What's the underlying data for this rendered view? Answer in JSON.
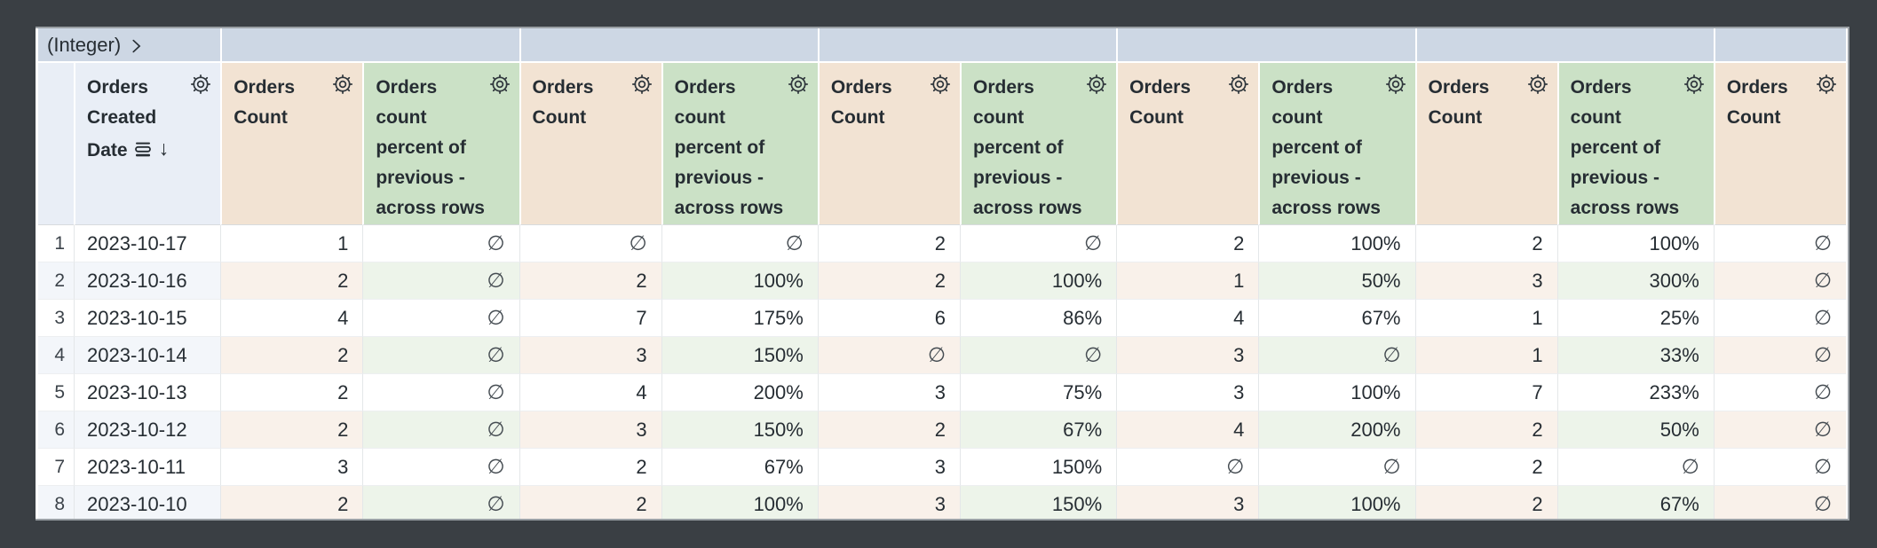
{
  "pivot_bar": {
    "field_label": "(Integer)",
    "cells": [
      {
        "label": "(Integer)",
        "has_chevron": true,
        "span": 2
      },
      {
        "label": "",
        "span": 2
      },
      {
        "label": "",
        "span": 2
      },
      {
        "label": "",
        "span": 2
      },
      {
        "label": "",
        "span": 2
      },
      {
        "label": "",
        "span": 2
      },
      {
        "label": "",
        "span": 1
      }
    ]
  },
  "icons": {
    "chevron_right": "❯",
    "sort_desc": "↓",
    "gear": "⚙",
    "null_symbol": "∅"
  },
  "columns": [
    {
      "label": "",
      "kind": "index",
      "gear": false
    },
    {
      "label": "Orders Created Date",
      "kind": "dimension",
      "gear": true,
      "sort_desc": true,
      "subtotal_icon": true
    },
    {
      "label": "Orders Count",
      "kind": "measure",
      "gear": true
    },
    {
      "label": "Orders count percent of previous - across rows",
      "kind": "table_calculation",
      "gear": true
    },
    {
      "label": "Orders Count",
      "kind": "measure",
      "gear": true
    },
    {
      "label": "Orders count percent of previous - across rows",
      "kind": "table_calculation",
      "gear": true
    },
    {
      "label": "Orders Count",
      "kind": "measure",
      "gear": true
    },
    {
      "label": "Orders count percent of previous - across rows",
      "kind": "table_calculation",
      "gear": true
    },
    {
      "label": "Orders Count",
      "kind": "measure",
      "gear": true
    },
    {
      "label": "Orders count percent of previous - across rows",
      "kind": "table_calculation",
      "gear": true
    },
    {
      "label": "Orders Count",
      "kind": "measure",
      "gear": true
    },
    {
      "label": "Orders count percent of previous - across rows",
      "kind": "table_calculation",
      "gear": true
    },
    {
      "label": "Orders Count",
      "kind": "measure",
      "gear": true,
      "clipped": true
    }
  ],
  "rows": [
    {
      "cells": [
        "1",
        "2023-10-17",
        "1",
        "∅",
        "∅",
        "∅",
        "2",
        "∅",
        "2",
        "100%",
        "2",
        "100%",
        "∅"
      ]
    },
    {
      "cells": [
        "2",
        "2023-10-16",
        "2",
        "∅",
        "2",
        "100%",
        "2",
        "100%",
        "1",
        "50%",
        "3",
        "300%",
        "∅"
      ]
    },
    {
      "cells": [
        "3",
        "2023-10-15",
        "4",
        "∅",
        "7",
        "175%",
        "6",
        "86%",
        "4",
        "67%",
        "1",
        "25%",
        "∅"
      ]
    },
    {
      "cells": [
        "4",
        "2023-10-14",
        "2",
        "∅",
        "3",
        "150%",
        "∅",
        "∅",
        "3",
        "∅",
        "1",
        "33%",
        "∅"
      ]
    },
    {
      "cells": [
        "5",
        "2023-10-13",
        "2",
        "∅",
        "4",
        "200%",
        "3",
        "75%",
        "3",
        "100%",
        "7",
        "233%",
        "∅"
      ]
    },
    {
      "cells": [
        "6",
        "2023-10-12",
        "2",
        "∅",
        "3",
        "150%",
        "2",
        "67%",
        "4",
        "200%",
        "2",
        "50%",
        "∅"
      ]
    },
    {
      "cells": [
        "7",
        "2023-10-11",
        "3",
        "∅",
        "2",
        "67%",
        "3",
        "150%",
        "∅",
        "∅",
        "2",
        "∅",
        "∅"
      ]
    },
    {
      "cells": [
        "8",
        "2023-10-10",
        "2",
        "∅",
        "2",
        "100%",
        "3",
        "150%",
        "3",
        "100%",
        "2",
        "67%",
        "∅"
      ]
    }
  ],
  "colors": {
    "frame_background": "#3a3f44",
    "pivot_bar": "#cdd7e4",
    "dimension_header": "#e9eef6",
    "measure_header": "#f2e3d3",
    "calc_header": "#cbe1c6",
    "dimension_stripe": "#f3f6fa",
    "measure_stripe": "#f9f1ea",
    "calc_stripe": "#edf4ea",
    "text": "#262d33"
  }
}
